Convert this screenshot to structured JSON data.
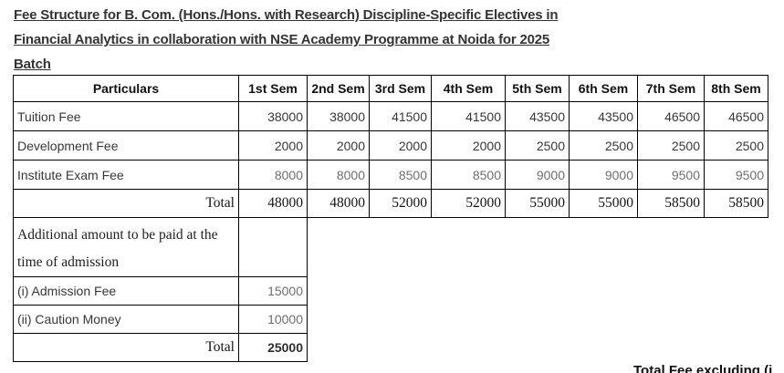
{
  "title": {
    "lines": [
      "Fee Structure for B. Com. (Hons./Hons. with Research) Discipline-Specific Electives in",
      "Financial Analytics in collaboration with NSE Academy Programme at Noida for 2025",
      "Batch"
    ]
  },
  "fee_table": {
    "headers": [
      "Particulars",
      "1st Sem",
      "2nd Sem",
      "3rd Sem",
      "4th Sem",
      "5th Sem",
      "6th Sem",
      "7th Sem",
      "8th Sem"
    ],
    "rows": [
      {
        "id": "tuition",
        "label": "Tuition Fee",
        "values": [
          "38000",
          "38000",
          "41500",
          "41500",
          "43500",
          "43500",
          "46500",
          "46500"
        ]
      },
      {
        "id": "development",
        "label": "Development Fee",
        "values": [
          "2000",
          "2000",
          "2000",
          "2000",
          "2500",
          "2500",
          "2500",
          "2500"
        ]
      },
      {
        "id": "exam",
        "label": "Institute Exam Fee",
        "values": [
          "8000",
          "8000",
          "8500",
          "8500",
          "9000",
          "9000",
          "9500",
          "9500"
        ]
      },
      {
        "id": "total",
        "label": "Total",
        "values": [
          "48000",
          "48000",
          "52000",
          "52000",
          "55000",
          "55000",
          "58500",
          "58500"
        ]
      }
    ],
    "additional": [
      {
        "id": "additional-heading",
        "label": "Additional amount to be paid at the time of admission",
        "value": ""
      },
      {
        "id": "admission",
        "label": "(i) Admission Fee",
        "value": "15000"
      },
      {
        "id": "caution",
        "label": "(ii) Caution Money",
        "value": "10000"
      },
      {
        "id": "total2",
        "label": "Total",
        "value": "25000"
      }
    ]
  },
  "footer": {
    "clipped_text": "Total Fee excluding (i"
  },
  "colors": {
    "border": "#000000",
    "text_dark": "#373737",
    "text_gray": "#6f6f6f",
    "background": "#ffffff"
  }
}
